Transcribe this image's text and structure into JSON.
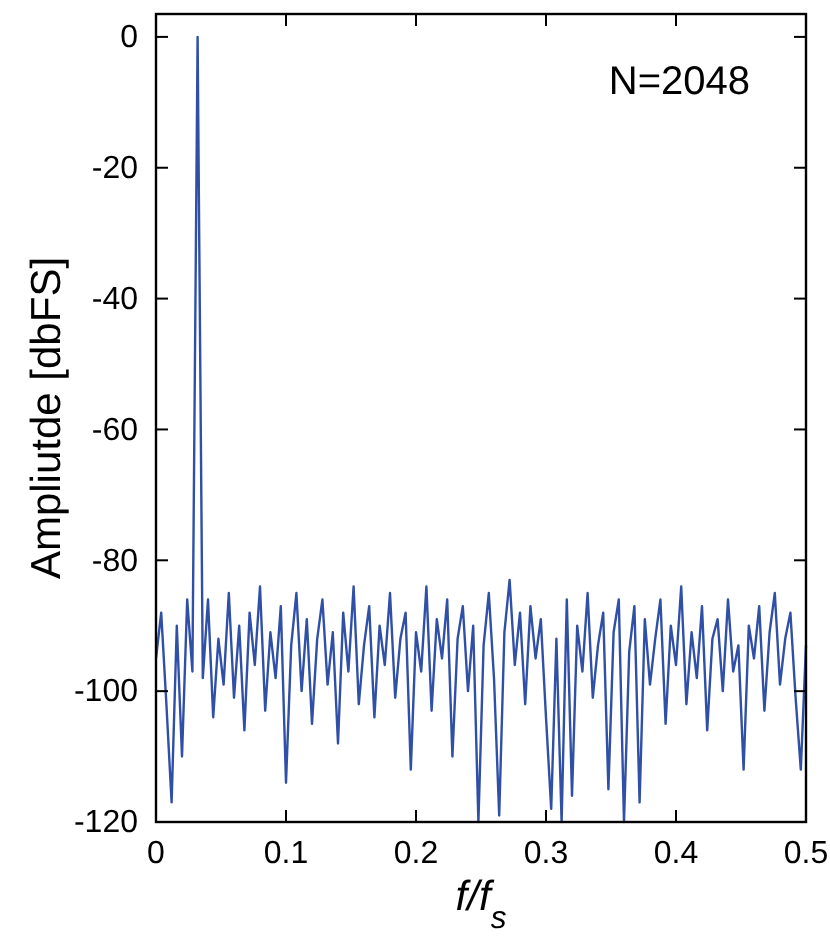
{
  "chart_data": {
    "type": "line",
    "xlabel": "f/f$_{s}$",
    "ylabel": "Ampliutde [dbFS]",
    "annotations": [
      "N=2048"
    ],
    "color": "#3050a8",
    "xlim": [
      0,
      0.5
    ],
    "ylim": [
      -120,
      3.5
    ],
    "xticks": [
      0,
      0.1,
      0.2,
      0.3,
      0.4,
      0.5
    ],
    "yticks": [
      -120,
      -100,
      -80,
      -60,
      -40,
      -20,
      0
    ],
    "x": [
      0,
      0.004,
      0.008,
      0.012,
      0.016,
      0.02,
      0.024,
      0.028,
      0.032,
      0.036,
      0.04,
      0.044,
      0.048,
      0.052,
      0.056,
      0.06,
      0.064,
      0.068,
      0.072,
      0.076,
      0.08,
      0.084,
      0.088,
      0.092,
      0.096,
      0.1,
      0.104,
      0.108,
      0.112,
      0.116,
      0.12,
      0.124,
      0.128,
      0.132,
      0.136,
      0.14,
      0.144,
      0.148,
      0.152,
      0.156,
      0.16,
      0.164,
      0.168,
      0.172,
      0.176,
      0.18,
      0.184,
      0.188,
      0.192,
      0.196,
      0.2,
      0.204,
      0.208,
      0.212,
      0.216,
      0.22,
      0.224,
      0.228,
      0.232,
      0.236,
      0.24,
      0.244,
      0.248,
      0.252,
      0.256,
      0.26,
      0.264,
      0.268,
      0.272,
      0.276,
      0.28,
      0.284,
      0.288,
      0.292,
      0.296,
      0.3,
      0.304,
      0.308,
      0.312,
      0.316,
      0.32,
      0.324,
      0.328,
      0.332,
      0.336,
      0.34,
      0.344,
      0.348,
      0.352,
      0.356,
      0.36,
      0.364,
      0.368,
      0.372,
      0.376,
      0.38,
      0.384,
      0.388,
      0.392,
      0.396,
      0.4,
      0.404,
      0.408,
      0.412,
      0.416,
      0.42,
      0.424,
      0.428,
      0.432,
      0.436,
      0.44,
      0.444,
      0.448,
      0.452,
      0.456,
      0.46,
      0.464,
      0.468,
      0.472,
      0.476,
      0.48,
      0.484,
      0.488,
      0.492,
      0.496,
      0.5
    ],
    "values": [
      -95,
      -88,
      -102,
      -117,
      -90,
      -110,
      -86,
      -97,
      0,
      -98,
      -86,
      -104,
      -92,
      -99,
      -85,
      -101,
      -90,
      -106,
      -88,
      -96,
      -84,
      -103,
      -91,
      -98,
      -87,
      -114,
      -93,
      -85,
      -100,
      -89,
      -105,
      -92,
      -86,
      -99,
      -91,
      -108,
      -88,
      -97,
      -84,
      -102,
      -93,
      -87,
      -104,
      -90,
      -96,
      -85,
      -101,
      -92,
      -88,
      -112,
      -91,
      -97,
      -84,
      -103,
      -89,
      -95,
      -86,
      -110,
      -92,
      -87,
      -100,
      -90,
      -120,
      -93,
      -85,
      -98,
      -119,
      -91,
      -83,
      -96,
      -88,
      -102,
      -87,
      -95,
      -89,
      -104,
      -118,
      -92,
      -120,
      -86,
      -116,
      -90,
      -97,
      -85,
      -101,
      -93,
      -88,
      -115,
      -91,
      -86,
      -120,
      -94,
      -87,
      -117,
      -89,
      -99,
      -92,
      -86,
      -105,
      -90,
      -96,
      -84,
      -102,
      -91,
      -98,
      -87,
      -106,
      -92,
      -89,
      -100,
      -86,
      -97,
      -93,
      -112,
      -90,
      -95,
      -87,
      -103,
      -91,
      -85,
      -99,
      -92,
      -88,
      -101,
      -112,
      -93
    ]
  }
}
